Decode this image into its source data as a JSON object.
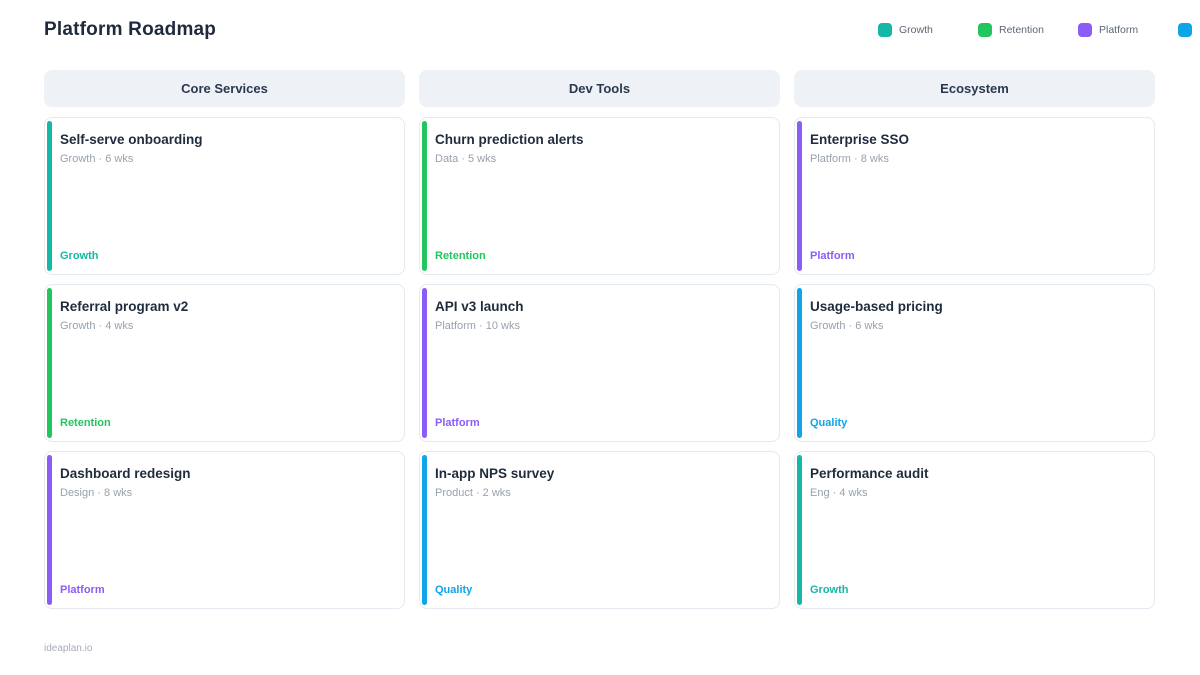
{
  "page": {
    "title": "Platform Roadmap",
    "footer": "ideaplan.io"
  },
  "legend": {
    "items": [
      {
        "label": "Growth",
        "color": "#14b8a6"
      },
      {
        "label": "Retention",
        "color": "#22c55e"
      },
      {
        "label": "Platform",
        "color": "#8b5cf6"
      },
      {
        "label": "",
        "color": "#0ea5e9"
      }
    ]
  },
  "board": {
    "columns": [
      {
        "title": "Core Services",
        "cards": [
          {
            "title": "Self-serve onboarding",
            "meta": "Growth · 6 wks",
            "tag": "Growth",
            "color": "#14b8a6"
          },
          {
            "title": "Referral program v2",
            "meta": "Growth · 4 wks",
            "tag": "Retention",
            "color": "#22c55e"
          },
          {
            "title": "Dashboard redesign",
            "meta": "Design · 8 wks",
            "tag": "Platform",
            "color": "#8b5cf6"
          }
        ]
      },
      {
        "title": "Dev Tools",
        "cards": [
          {
            "title": "Churn prediction alerts",
            "meta": "Data · 5 wks",
            "tag": "Retention",
            "color": "#22c55e"
          },
          {
            "title": "API v3 launch",
            "meta": "Platform · 10 wks",
            "tag": "Platform",
            "color": "#8b5cf6"
          },
          {
            "title": "In-app NPS survey",
            "meta": "Product · 2 wks",
            "tag": "Quality",
            "color": "#0ea5e9"
          }
        ]
      },
      {
        "title": "Ecosystem",
        "cards": [
          {
            "title": "Enterprise SSO",
            "meta": "Platform · 8 wks",
            "tag": "Platform",
            "color": "#8b5cf6"
          },
          {
            "title": "Usage-based pricing",
            "meta": "Growth · 6 wks",
            "tag": "Quality",
            "color": "#0ea5e9"
          },
          {
            "title": "Performance audit",
            "meta": "Eng · 4 wks",
            "tag": "Growth",
            "color": "#14b8a6"
          }
        ]
      }
    ]
  }
}
